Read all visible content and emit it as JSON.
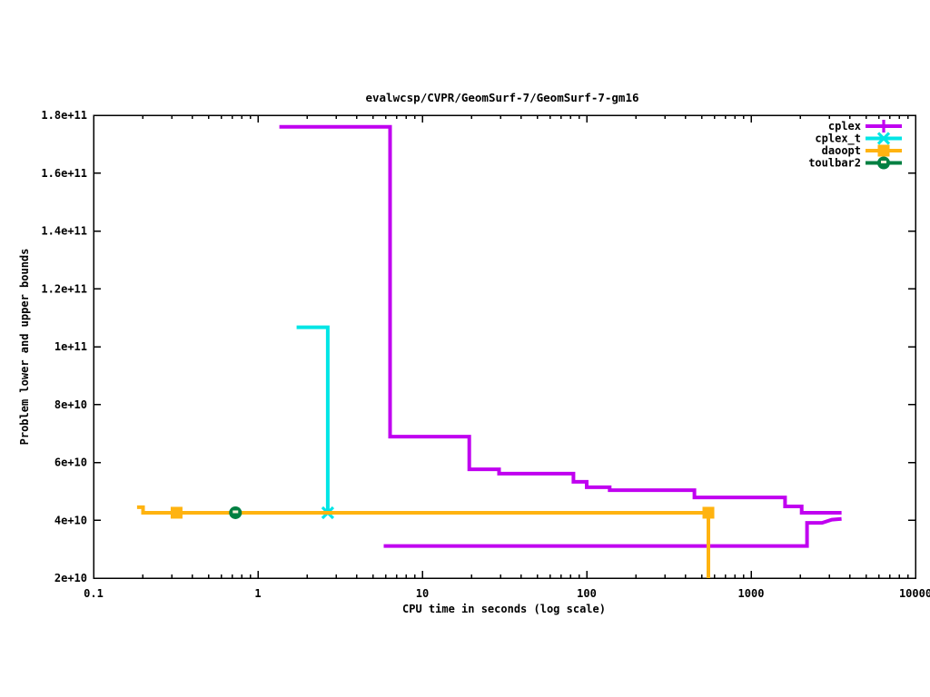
{
  "chart_data": {
    "type": "line",
    "title": "evalwcsp/CVPR/GeomSurf-7/GeomSurf-7-gm16",
    "xlabel": "CPU time in seconds (log scale)",
    "ylabel": "Problem lower and upper bounds",
    "x_scale": "log",
    "xlim": [
      0.1,
      10000
    ],
    "ylim": [
      20000000000.0,
      180000000000.0
    ],
    "x_ticks": [
      0.1,
      1,
      10,
      100,
      1000,
      10000
    ],
    "x_tick_labels": [
      "0.1",
      "1",
      "10",
      "100",
      "1000",
      "10000"
    ],
    "y_ticks": [
      20000000000.0,
      40000000000.0,
      60000000000.0,
      80000000000.0,
      100000000000.0,
      120000000000.0,
      140000000000.0,
      160000000000.0,
      180000000000.0
    ],
    "y_tick_labels": [
      "2e+10",
      "4e+10",
      "6e+10",
      "8e+10",
      "1e+11",
      "1.2e+11",
      "1.4e+11",
      "1.6e+11",
      "1.8e+11"
    ],
    "grid": false,
    "legend_position": "top-right",
    "series": [
      {
        "name": "cplex",
        "color": "#c000f0",
        "marker": "plus",
        "lines": [
          {
            "role": "upper-bound",
            "points": [
              [
                1.35,
                176000000000.0
              ],
              [
                6.37,
                176000000000.0
              ],
              [
                6.37,
                68900000000.0
              ],
              [
                19.3,
                68900000000.0
              ],
              [
                19.3,
                57600000000.0
              ],
              [
                29.3,
                57600000000.0
              ],
              [
                29.3,
                56100000000.0
              ],
              [
                83,
                56100000000.0
              ],
              [
                83,
                53300000000.0
              ],
              [
                100,
                53300000000.0
              ],
              [
                100,
                51400000000.0
              ],
              [
                138,
                51400000000.0
              ],
              [
                138,
                50400000000.0
              ],
              [
                452,
                50400000000.0
              ],
              [
                452,
                47900000000.0
              ],
              [
                1610,
                47900000000.0
              ],
              [
                1610,
                44800000000.0
              ],
              [
                2030,
                44800000000.0
              ],
              [
                2030,
                42600000000.0
              ],
              [
                3550,
                42600000000.0
              ]
            ]
          },
          {
            "role": "lower-bound",
            "points": [
              [
                5.82,
                31100000000.0
              ],
              [
                2190,
                31100000000.0
              ],
              [
                2190,
                39100000000.0
              ],
              [
                2700,
                39100000000.0
              ],
              [
                3100,
                40200000000.0
              ],
              [
                3550,
                40500000000.0
              ]
            ]
          }
        ],
        "marker_points": []
      },
      {
        "name": "cplex_t",
        "color": "#00e5e5",
        "marker": "x",
        "lines": [
          {
            "role": "upper-bound",
            "points": [
              [
                1.72,
                106700000000.0
              ],
              [
                2.66,
                106700000000.0
              ],
              [
                2.66,
                42600000000.0
              ]
            ]
          }
        ],
        "marker_points": [
          [
            2.66,
            42600000000.0
          ]
        ]
      },
      {
        "name": "daoopt",
        "color": "#ffb310",
        "marker": "square",
        "lines": [
          {
            "role": "lower-bound",
            "points": [
              [
                0.184,
                44500000000.0
              ],
              [
                0.2,
                44500000000.0
              ],
              [
                0.2,
                42600000000.0
              ],
              [
                550,
                42600000000.0
              ],
              [
                550,
                20000000000.0
              ]
            ]
          }
        ],
        "marker_points": [
          [
            0.32,
            42600000000.0
          ],
          [
            550,
            42600000000.0
          ]
        ]
      },
      {
        "name": "toulbar2",
        "color": "#008042",
        "marker": "circle-dash",
        "lines": [],
        "marker_points": [
          [
            0.73,
            42600000000.0
          ]
        ]
      }
    ]
  }
}
